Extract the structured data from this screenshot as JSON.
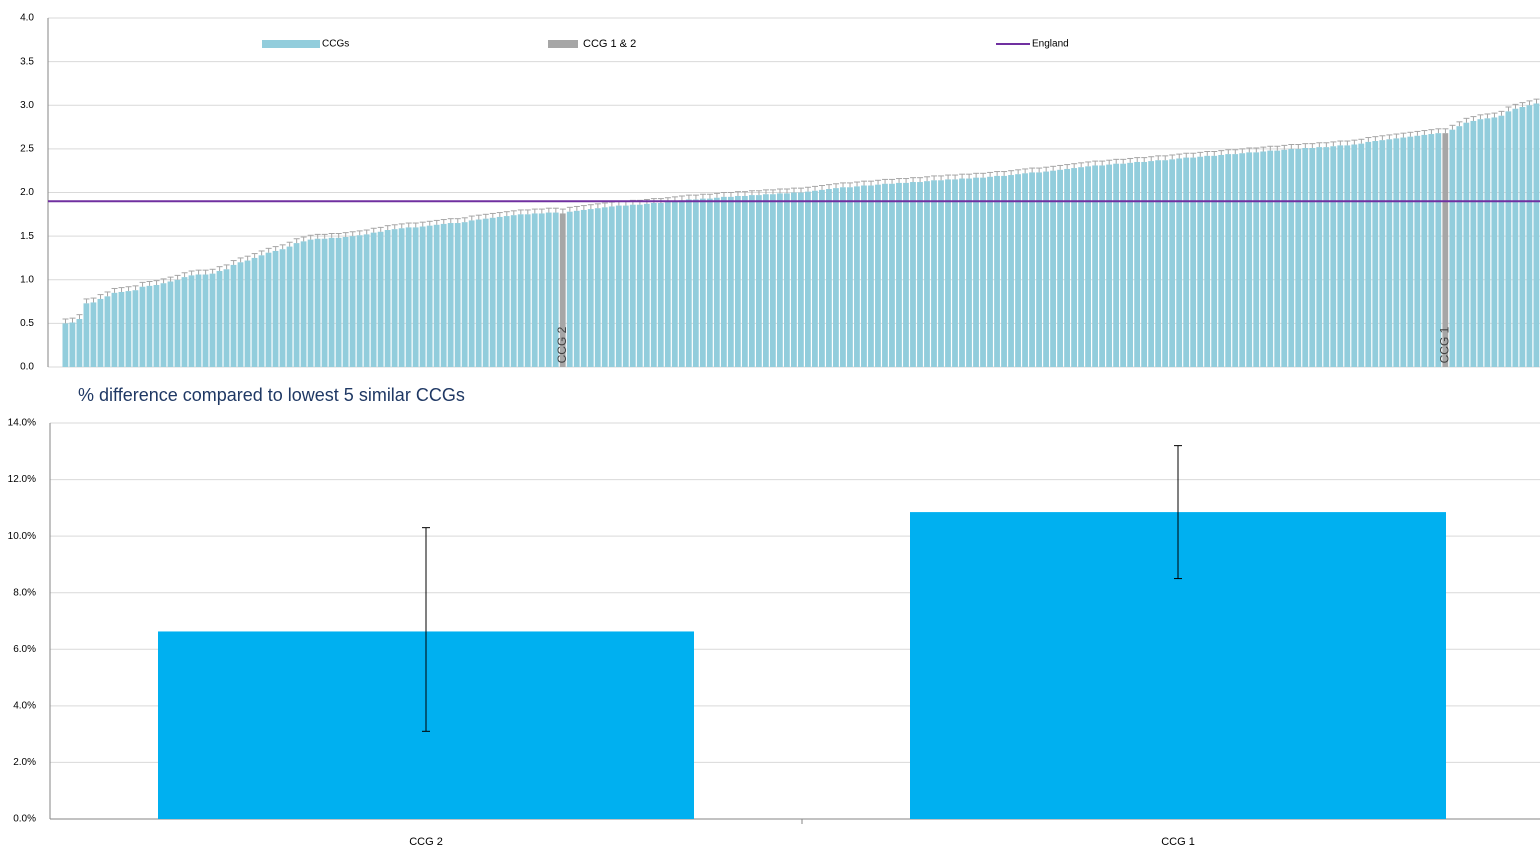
{
  "chart_data": [
    {
      "type": "bar",
      "series": [
        {
          "name": "CCGs",
          "color": "#92cddc",
          "values": [
            0.5,
            0.51,
            0.55,
            0.73,
            0.74,
            0.78,
            0.81,
            0.85,
            0.86,
            0.87,
            0.88,
            0.92,
            0.93,
            0.94,
            0.96,
            0.98,
            1.0,
            1.03,
            1.05,
            1.06,
            1.06,
            1.07,
            1.1,
            1.12,
            1.17,
            1.2,
            1.22,
            1.25,
            1.28,
            1.31,
            1.33,
            1.35,
            1.38,
            1.42,
            1.44,
            1.46,
            1.47,
            1.47,
            1.48,
            1.48,
            1.49,
            1.5,
            1.51,
            1.52,
            1.54,
            1.55,
            1.57,
            1.58,
            1.59,
            1.6,
            1.6,
            1.61,
            1.62,
            1.63,
            1.64,
            1.65,
            1.65,
            1.66,
            1.68,
            1.69,
            1.7,
            1.71,
            1.72,
            1.73,
            1.74,
            1.75,
            1.75,
            1.76,
            1.76,
            1.77,
            1.77,
            1.76,
            1.78,
            1.79,
            1.8,
            1.81,
            1.82,
            1.83,
            1.84,
            1.85,
            1.85,
            1.86,
            1.86,
            1.87,
            1.88,
            1.88,
            1.89,
            1.9,
            1.91,
            1.92,
            1.92,
            1.93,
            1.93,
            1.94,
            1.95,
            1.95,
            1.96,
            1.96,
            1.97,
            1.97,
            1.98,
            1.98,
            1.99,
            1.99,
            2.0,
            2.0,
            2.01,
            2.02,
            2.03,
            2.04,
            2.05,
            2.06,
            2.06,
            2.07,
            2.08,
            2.08,
            2.09,
            2.1,
            2.1,
            2.11,
            2.11,
            2.12,
            2.12,
            2.13,
            2.14,
            2.14,
            2.15,
            2.15,
            2.16,
            2.16,
            2.17,
            2.17,
            2.18,
            2.19,
            2.19,
            2.2,
            2.21,
            2.22,
            2.23,
            2.23,
            2.24,
            2.25,
            2.26,
            2.27,
            2.28,
            2.29,
            2.3,
            2.31,
            2.31,
            2.32,
            2.33,
            2.33,
            2.34,
            2.35,
            2.35,
            2.36,
            2.37,
            2.37,
            2.38,
            2.39,
            2.4,
            2.4,
            2.41,
            2.42,
            2.42,
            2.43,
            2.44,
            2.44,
            2.45,
            2.46,
            2.46,
            2.47,
            2.48,
            2.48,
            2.49,
            2.5,
            2.5,
            2.51,
            2.51,
            2.52,
            2.52,
            2.53,
            2.54,
            2.54,
            2.55,
            2.56,
            2.58,
            2.59,
            2.6,
            2.61,
            2.62,
            2.63,
            2.64,
            2.65,
            2.66,
            2.67,
            2.68,
            2.68,
            2.72,
            2.76,
            2.8,
            2.82,
            2.84,
            2.85,
            2.86,
            2.88,
            2.93,
            2.96,
            2.98,
            3.0,
            3.02
          ]
        }
      ],
      "error": 0.05,
      "error_color": "#a6a6a6",
      "categories": [
        null,
        null,
        null,
        null,
        null,
        null,
        null,
        null,
        null,
        null,
        null,
        null,
        null,
        null,
        null,
        null,
        null,
        null,
        null,
        null,
        null,
        null,
        null,
        null,
        null,
        null,
        null,
        null,
        null,
        null,
        null,
        null,
        null,
        null,
        null,
        null,
        null,
        null,
        null,
        null,
        null,
        null,
        null,
        null,
        null,
        null,
        null,
        null,
        null,
        null,
        null,
        null,
        null,
        null,
        null,
        null,
        null,
        null,
        null,
        null,
        null,
        null,
        null,
        null,
        null,
        null,
        null,
        null,
        null,
        null,
        null,
        "CCG 2",
        null,
        null,
        null,
        null,
        null,
        null,
        null,
        null,
        null,
        null,
        null,
        null,
        null,
        null,
        null,
        null,
        null,
        null,
        null,
        null,
        null,
        null,
        null,
        null,
        null,
        null,
        null,
        null,
        null,
        null,
        null,
        null,
        null,
        null,
        null,
        null,
        null,
        null,
        null,
        null,
        null,
        null,
        null,
        null,
        null,
        null,
        null,
        null,
        null,
        null,
        null,
        null,
        null,
        null,
        null,
        null,
        null,
        null,
        null,
        null,
        null,
        null,
        null,
        null,
        null,
        null,
        null,
        null,
        null,
        null,
        null,
        null,
        null,
        null,
        null,
        null,
        null,
        null,
        null,
        null,
        null,
        null,
        null,
        null,
        null,
        null,
        null,
        null,
        null,
        null,
        null,
        null,
        null,
        null,
        null,
        null,
        null,
        null,
        null,
        null,
        null,
        null,
        null,
        null,
        null,
        null,
        null,
        null,
        null,
        null,
        null,
        null,
        null,
        null,
        null,
        null,
        null,
        null,
        null,
        null,
        null,
        null,
        null,
        null,
        null,
        "CCG 1",
        null,
        null,
        null,
        null,
        null,
        null,
        null,
        null,
        null,
        null,
        null,
        null,
        null
      ],
      "highlight": {
        "name": "CCG 1 & 2",
        "color": "#a6a6a6"
      },
      "reference_line": {
        "name": "England",
        "value": 1.9,
        "color": "#7030a0"
      },
      "ylim": [
        0,
        4
      ],
      "yticks": [
        {
          "value": 0,
          "label": "0.0"
        },
        0.5,
        {
          "value": 1,
          "label": "1.0"
        },
        1.5,
        {
          "value": 2,
          "label": "2.0"
        },
        2.5,
        {
          "value": 3,
          "label": "3.0"
        },
        3.5,
        {
          "value": 4,
          "label": "4.0"
        }
      ],
      "grid": true,
      "legend": "top"
    },
    {
      "type": "bar",
      "title": "% difference compared to lowest 5 similar CCGs",
      "categories": [
        "CCG 2",
        "CCG 1"
      ],
      "values": [
        6.63,
        10.85
      ],
      "lower": [
        3.1,
        8.5
      ],
      "upper": [
        10.3,
        13.2
      ],
      "color": "#00b0f0",
      "ylim": [
        0,
        14
      ],
      "yticks": [
        {
          "value": 0,
          "label": "0.0%"
        },
        {
          "value": 2,
          "label": "2.0%"
        },
        {
          "value": 4,
          "label": "4.0%"
        },
        {
          "value": 6,
          "label": "6.0%"
        },
        {
          "value": 8,
          "label": "8.0%"
        },
        {
          "value": 10,
          "label": "10.0%"
        },
        {
          "value": 12,
          "label": "12.0%"
        },
        {
          "value": 14,
          "label": "14.0%"
        }
      ],
      "grid": true
    }
  ]
}
